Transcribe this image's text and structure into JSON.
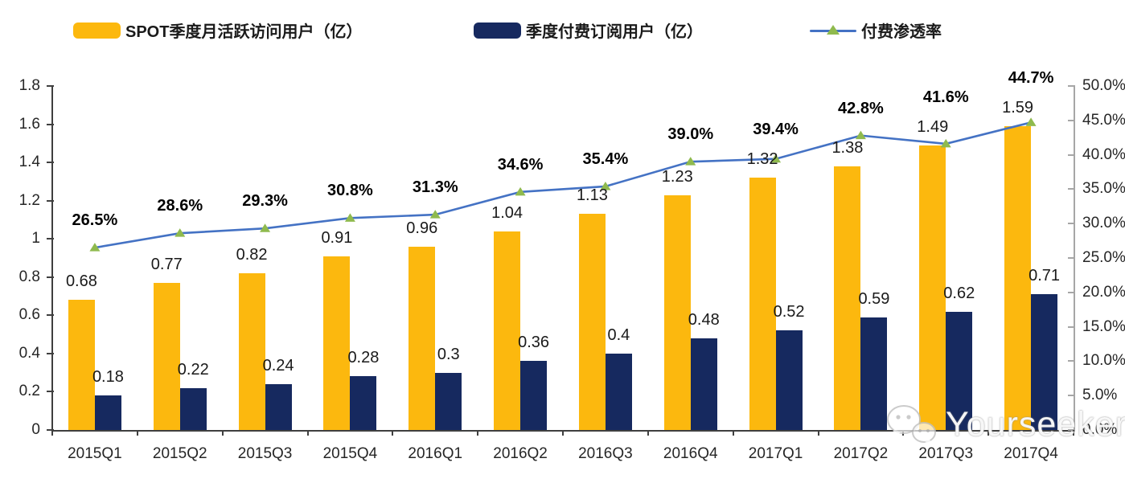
{
  "legend": {
    "items": [
      {
        "label": "SPOT季度月活跃访问用户（亿）",
        "swatch_color": "#fcb80e",
        "type": "bar-swatch"
      },
      {
        "label": "季度付费订阅用户（亿）",
        "swatch_color": "#16295f",
        "type": "bar-swatch"
      },
      {
        "label": "付费渗透率",
        "line_color": "#4472c4",
        "marker_color": "#8fba4e",
        "type": "line-marker"
      }
    ]
  },
  "chart_data": {
    "type": "bar+line",
    "title": "",
    "legend_position": "top",
    "grid": false,
    "categories": [
      "2015Q1",
      "2015Q2",
      "2015Q3",
      "2015Q4",
      "2016Q1",
      "2016Q2",
      "2016Q3",
      "2016Q4",
      "2017Q1",
      "2017Q2",
      "2017Q3",
      "2017Q4"
    ],
    "series": [
      {
        "name": "SPOT季度月活跃访问用户（亿）",
        "type": "bar",
        "axis": "left",
        "color": "#fcb80e",
        "values": [
          0.68,
          0.77,
          0.82,
          0.91,
          0.96,
          1.04,
          1.13,
          1.23,
          1.32,
          1.38,
          1.49,
          1.59
        ],
        "labels": [
          "0.68",
          "0.77",
          "0.82",
          "0.91",
          "0.96",
          "1.04",
          "1.13",
          "1.23",
          "1.32",
          "1.38",
          "1.49",
          "1.59"
        ]
      },
      {
        "name": "季度付费订阅用户（亿）",
        "type": "bar",
        "axis": "left",
        "color": "#16295f",
        "values": [
          0.18,
          0.22,
          0.24,
          0.28,
          0.3,
          0.36,
          0.4,
          0.48,
          0.52,
          0.59,
          0.62,
          0.71
        ],
        "labels": [
          "0.18",
          "0.22",
          "0.24",
          "0.28",
          "0.3",
          "0.36",
          "0.4",
          "0.48",
          "0.52",
          "0.59",
          "0.62",
          "0.71"
        ]
      },
      {
        "name": "付费渗透率",
        "type": "line",
        "axis": "right",
        "color": "#4472c4",
        "marker": "triangle",
        "marker_color": "#8fba4e",
        "values": [
          26.5,
          28.6,
          29.3,
          30.8,
          31.3,
          34.6,
          35.4,
          39.0,
          39.4,
          42.8,
          41.6,
          44.7
        ],
        "labels": [
          "26.5%",
          "28.6%",
          "29.3%",
          "30.8%",
          "31.3%",
          "34.6%",
          "35.4%",
          "39.0%",
          "39.4%",
          "42.8%",
          "41.6%",
          "44.7%"
        ]
      }
    ],
    "left_axis": {
      "min": 0,
      "max": 1.8,
      "tick_labels": [
        "1.8",
        "1.6",
        "1.4",
        "1.2",
        "1",
        "0.8",
        "0.6",
        "0.4",
        "0.2",
        "0"
      ],
      "color": "#3f3f3f"
    },
    "right_axis": {
      "min": 0,
      "max": 50,
      "tick_labels": [
        "50.0%",
        "45.0%",
        "40.0%",
        "35.0%",
        "30.0%",
        "25.0%",
        "20.0%",
        "15.0%",
        "10.0%",
        "5.0%",
        "0.0%"
      ],
      "color": "#a6a6a6"
    }
  },
  "watermark": {
    "text": "Yourseeker",
    "icon": "wechat-icon"
  }
}
